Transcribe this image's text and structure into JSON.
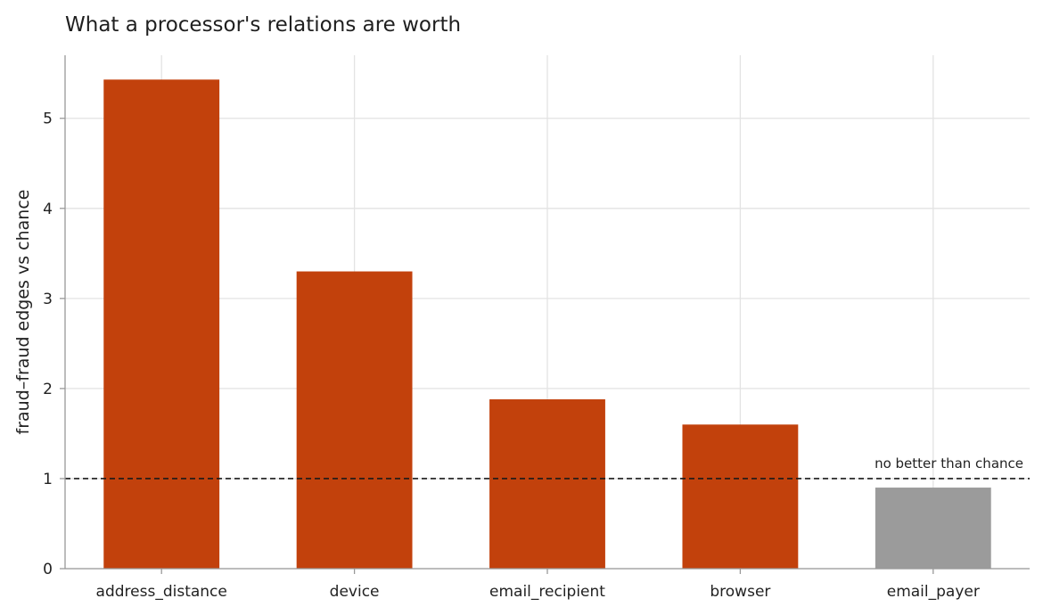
{
  "chart_data": {
    "type": "bar",
    "title": "What a processor's relations are worth",
    "xlabel": "",
    "ylabel": "fraud–fraud edges vs chance",
    "categories": [
      "address_distance",
      "device",
      "email_recipient",
      "browser",
      "email_payer"
    ],
    "values": [
      5.43,
      3.3,
      1.88,
      1.6,
      0.9
    ],
    "ylim": [
      0,
      5.7
    ],
    "yticks": [
      "0",
      "1",
      "2",
      "3",
      "4",
      "5"
    ],
    "grid": true,
    "reference_line": {
      "value": 1,
      "label": "no better than chance"
    },
    "colors": {
      "above_chance": "#c2410c",
      "below_chance": "#9b9b9b"
    }
  }
}
